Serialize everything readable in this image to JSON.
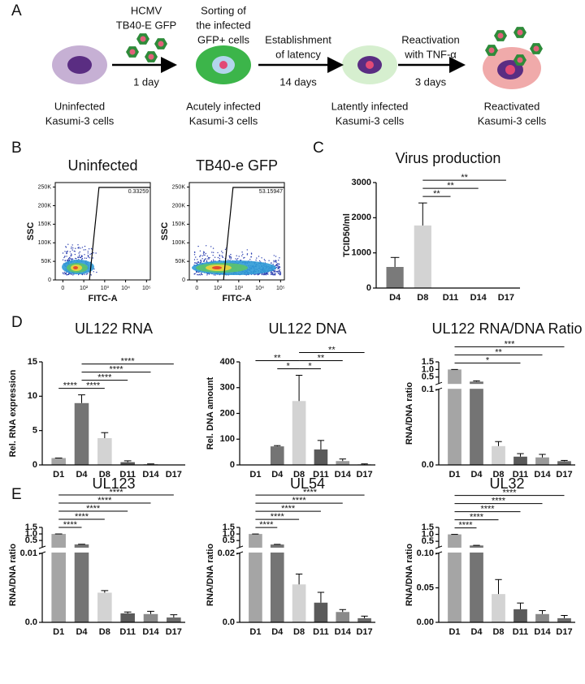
{
  "figure": {
    "panel_labels": [
      "A",
      "B",
      "C",
      "D",
      "E"
    ],
    "schematic": {
      "cells": [
        {
          "label": [
            "Uninfected",
            "Kasumi-3 cells"
          ]
        },
        {
          "label": [
            "Acutely infected",
            "Kasumi-3 cells"
          ]
        },
        {
          "label": [
            "Latently infected",
            "Kasumi-3 cells"
          ]
        },
        {
          "label": [
            "Reactivated",
            "Kasumi-3 cells"
          ]
        }
      ],
      "sorting_note": [
        "Sorting of",
        "the infected",
        "GFP+ cells"
      ],
      "steps": [
        {
          "above": [
            "HCMV",
            "TB40-E GFP"
          ],
          "below": "1 day"
        },
        {
          "above": [
            "Establishment",
            "of latency"
          ],
          "below": "14 days"
        },
        {
          "above": [
            "Reactivation",
            "with TNF-α"
          ],
          "below": "3 days"
        }
      ]
    },
    "flow": {
      "ylabel": "SSC",
      "xlabel": "FITC-A",
      "ylim": [
        0,
        262144
      ],
      "yticks": [
        0,
        {
          "value": 50000,
          "label": "50K"
        },
        {
          "value": 100000,
          "label": "100K"
        },
        {
          "value": 150000,
          "label": "150K"
        },
        {
          "value": 200000,
          "label": "200K"
        },
        {
          "value": 250000,
          "label": "250K"
        }
      ],
      "xticks": [
        0,
        {
          "value": 100,
          "label": "10²"
        },
        {
          "value": 1000,
          "label": "10³"
        },
        {
          "value": 10000,
          "label": "10⁴"
        },
        {
          "value": 100000,
          "label": "10⁵"
        }
      ],
      "plots": [
        {
          "title": "Uninfected",
          "gate_value": 0.33259
        },
        {
          "title": "TB40-e GFP",
          "gate_value": 53.15947
        }
      ]
    }
  },
  "chart_data": [
    {
      "type": "bar",
      "title": "Virus production",
      "ylabel": "TCID50/ml",
      "categories": [
        "D4",
        "D8",
        "D11",
        "D14",
        "D17"
      ],
      "values": [
        600,
        1780,
        0,
        0,
        0
      ],
      "errors": [
        270,
        640,
        0,
        0,
        0
      ],
      "colors": [
        "#7a7a7a",
        "#d3d3d3",
        "#5a5a5a",
        "#9a9a9a",
        "#6a6a6a"
      ],
      "ylim": [
        0,
        3000
      ],
      "yticks": [
        0,
        1000,
        2000,
        3000
      ],
      "brackets": [
        {
          "from": 1,
          "to": 2,
          "label": "**"
        },
        {
          "from": 1,
          "to": 3,
          "label": "**"
        },
        {
          "from": 1,
          "to": 4,
          "label": "**"
        }
      ]
    },
    {
      "type": "bar",
      "title": "UL122 RNA",
      "ylabel": "Rel. RNA expression",
      "categories": [
        "D1",
        "D4",
        "D8",
        "D11",
        "D14",
        "D17"
      ],
      "values": [
        1,
        9,
        3.9,
        0.4,
        0.1,
        0
      ],
      "errors": [
        0,
        1.2,
        0.8,
        0.2,
        0.05,
        0
      ],
      "colors": [
        "#a5a5a5",
        "#747474",
        "#d3d3d3",
        "#5a5a5a",
        "#9a9a9a",
        "#6a6a6a"
      ],
      "ylim": [
        0,
        15
      ],
      "yticks": [
        0,
        5,
        10,
        15
      ],
      "brackets": [
        {
          "from": 1,
          "to": 0,
          "label": "****"
        },
        {
          "from": 1,
          "to": 2,
          "label": "****"
        },
        {
          "from": 1,
          "to": 3,
          "label": "****"
        },
        {
          "from": 1,
          "to": 4,
          "label": "****"
        },
        {
          "from": 1,
          "to": 5,
          "label": "****"
        }
      ]
    },
    {
      "type": "bar",
      "title": "UL122 DNA",
      "ylabel": "Rel. DNA amount",
      "categories": [
        "D1",
        "D4",
        "D8",
        "D11",
        "D14",
        "D17"
      ],
      "values": [
        0,
        72,
        248,
        60,
        15,
        2
      ],
      "errors": [
        0,
        3,
        100,
        35,
        8,
        2
      ],
      "colors": [
        "#a5a5a5",
        "#747474",
        "#d3d3d3",
        "#5a5a5a",
        "#9a9a9a",
        "#6a6a6a"
      ],
      "ylim": [
        0,
        400
      ],
      "yticks": [
        0,
        100,
        200,
        300,
        400
      ],
      "brackets": [
        {
          "from": 1,
          "to": 2,
          "label": "*"
        },
        {
          "from": 2,
          "to": 3,
          "label": "*"
        },
        {
          "from": 2,
          "to": 4,
          "label": "**"
        },
        {
          "from": 0,
          "to": 2,
          "label": "**"
        },
        {
          "from": 2,
          "to": 5,
          "label": "**"
        }
      ]
    },
    {
      "type": "bar",
      "title": "UL122 RNA/DNA Ratio",
      "ylabel": "RNA/DNA ratio",
      "categories": [
        "D1",
        "D4",
        "D8",
        "D11",
        "D14",
        "D17"
      ],
      "values": [
        1,
        0.2,
        0.025,
        0.011,
        0.01,
        0.005
      ],
      "errors": [
        0,
        0.05,
        0.006,
        0.004,
        0.004,
        0.001
      ],
      "colors": [
        "#a5a5a5",
        "#747474",
        "#d3d3d3",
        "#5a5a5a",
        "#9a9a9a",
        "#6a6a6a"
      ],
      "ylim": [
        0,
        1.5
      ],
      "ybreak": 0.1,
      "yticks": [
        {
          "value": 0,
          "label": "0.0"
        },
        0.1,
        0.5,
        {
          "value": 1,
          "label": "1.0"
        },
        1.5
      ],
      "brackets": [
        {
          "from": 0,
          "to": 3,
          "label": "*"
        },
        {
          "from": 0,
          "to": 4,
          "label": "**"
        },
        {
          "from": 0,
          "to": 5,
          "label": "***"
        }
      ]
    },
    {
      "type": "bar",
      "title": "UL123",
      "ylabel": "RNA/DNA ratio",
      "categories": [
        "D1",
        "D4",
        "D8",
        "D11",
        "D14",
        "D17"
      ],
      "values": [
        1,
        0.2,
        0.0043,
        0.0013,
        0.0012,
        0.0007
      ],
      "errors": [
        0,
        0.01,
        0.0003,
        0.0002,
        0.0004,
        0.0004
      ],
      "colors": [
        "#a5a5a5",
        "#747474",
        "#d3d3d3",
        "#5a5a5a",
        "#8a8a8a",
        "#6a6a6a"
      ],
      "ylim": [
        0,
        1.5
      ],
      "ybreak": 0.01,
      "yticks": [
        {
          "value": 0,
          "label": "0.0"
        },
        0.01,
        0.5,
        {
          "value": 1,
          "label": "1.0"
        },
        1.5
      ],
      "brackets": [
        {
          "from": 0,
          "to": 1,
          "label": "****"
        },
        {
          "from": 0,
          "to": 2,
          "label": "****"
        },
        {
          "from": 0,
          "to": 3,
          "label": "****"
        },
        {
          "from": 0,
          "to": 4,
          "label": "****"
        },
        {
          "from": 0,
          "to": 5,
          "label": "****"
        }
      ]
    },
    {
      "type": "bar",
      "title": "UL54",
      "ylabel": "RNA/DNA ratio",
      "categories": [
        "D1",
        "D4",
        "D8",
        "D11",
        "D14",
        "D17"
      ],
      "values": [
        1,
        0.2,
        0.011,
        0.0057,
        0.003,
        0.0012
      ],
      "errors": [
        0,
        0.01,
        0.003,
        0.003,
        0.0007,
        0.0006
      ],
      "colors": [
        "#a5a5a5",
        "#747474",
        "#d3d3d3",
        "#5a5a5a",
        "#8a8a8a",
        "#6a6a6a"
      ],
      "ylim": [
        0,
        1.5
      ],
      "ybreak": 0.02,
      "yticks": [
        {
          "value": 0,
          "label": "0.0"
        },
        0.02,
        0.5,
        {
          "value": 1,
          "label": "1.0"
        },
        1.5
      ],
      "brackets": [
        {
          "from": 0,
          "to": 1,
          "label": "****"
        },
        {
          "from": 0,
          "to": 2,
          "label": "****"
        },
        {
          "from": 0,
          "to": 3,
          "label": "****"
        },
        {
          "from": 0,
          "to": 4,
          "label": "****"
        },
        {
          "from": 0,
          "to": 5,
          "label": "****"
        }
      ]
    },
    {
      "type": "bar",
      "title": "UL32",
      "ylabel": "RNA/DNA ratio",
      "categories": [
        "D1",
        "D4",
        "D8",
        "D11",
        "D14",
        "D17"
      ],
      "values": [
        1,
        0.2,
        0.041,
        0.019,
        0.012,
        0.006
      ],
      "errors": [
        0,
        0.01,
        0.021,
        0.009,
        0.005,
        0.004
      ],
      "colors": [
        "#a5a5a5",
        "#747474",
        "#d3d3d3",
        "#5a5a5a",
        "#8a8a8a",
        "#6a6a6a"
      ],
      "ylim": [
        0,
        1.5
      ],
      "ybreak": 0.1,
      "yticks": [
        {
          "value": 0,
          "label": "0.00"
        },
        0.05,
        {
          "value": 0.1,
          "label": "0.10"
        },
        0.5,
        {
          "value": 1,
          "label": "1.0"
        },
        1.5
      ],
      "brackets": [
        {
          "from": 0,
          "to": 1,
          "label": "****"
        },
        {
          "from": 0,
          "to": 2,
          "label": "****"
        },
        {
          "from": 0,
          "to": 3,
          "label": "****"
        },
        {
          "from": 0,
          "to": 4,
          "label": "****"
        },
        {
          "from": 0,
          "to": 5,
          "label": "****"
        }
      ]
    }
  ]
}
